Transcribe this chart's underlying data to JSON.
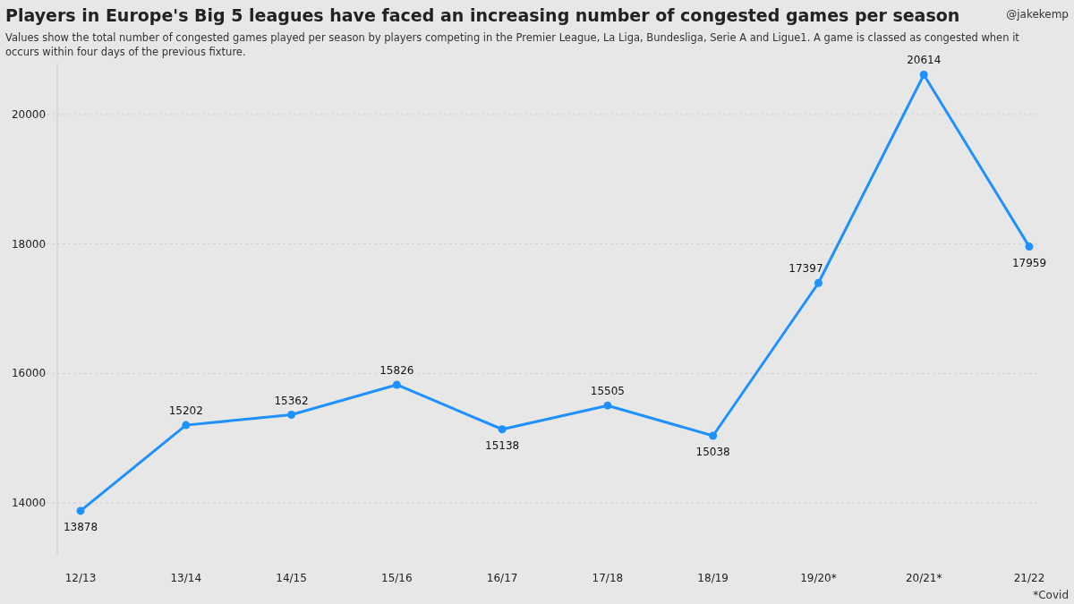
{
  "chart_data": {
    "type": "line",
    "title": "Players in Europe's Big 5 leagues have faced an increasing number of congested games per season",
    "subtitle": "Values show the total number of congested games played per season by players competing in the Premier League, La Liga, Bundesliga, Serie A and Ligue1. A game is classed as congested when it occurs within four days of the previous fixture.",
    "categories": [
      "12/13",
      "13/14",
      "14/15",
      "15/16",
      "16/17",
      "17/18",
      "18/19",
      "19/20*",
      "20/21*",
      "21/22"
    ],
    "series": [
      {
        "color": "#1e90ff",
        "values": [
          13878,
          15202,
          15362,
          15826,
          15138,
          15505,
          15038,
          17397,
          20614,
          17959
        ]
      }
    ],
    "ylim": [
      13200,
      20800
    ],
    "yticks": [
      14000,
      16000,
      18000,
      20000
    ],
    "grid": "y",
    "marker": "circle",
    "data_labels": true,
    "annotations": [
      "@jakekemp",
      "*Covid"
    ]
  }
}
